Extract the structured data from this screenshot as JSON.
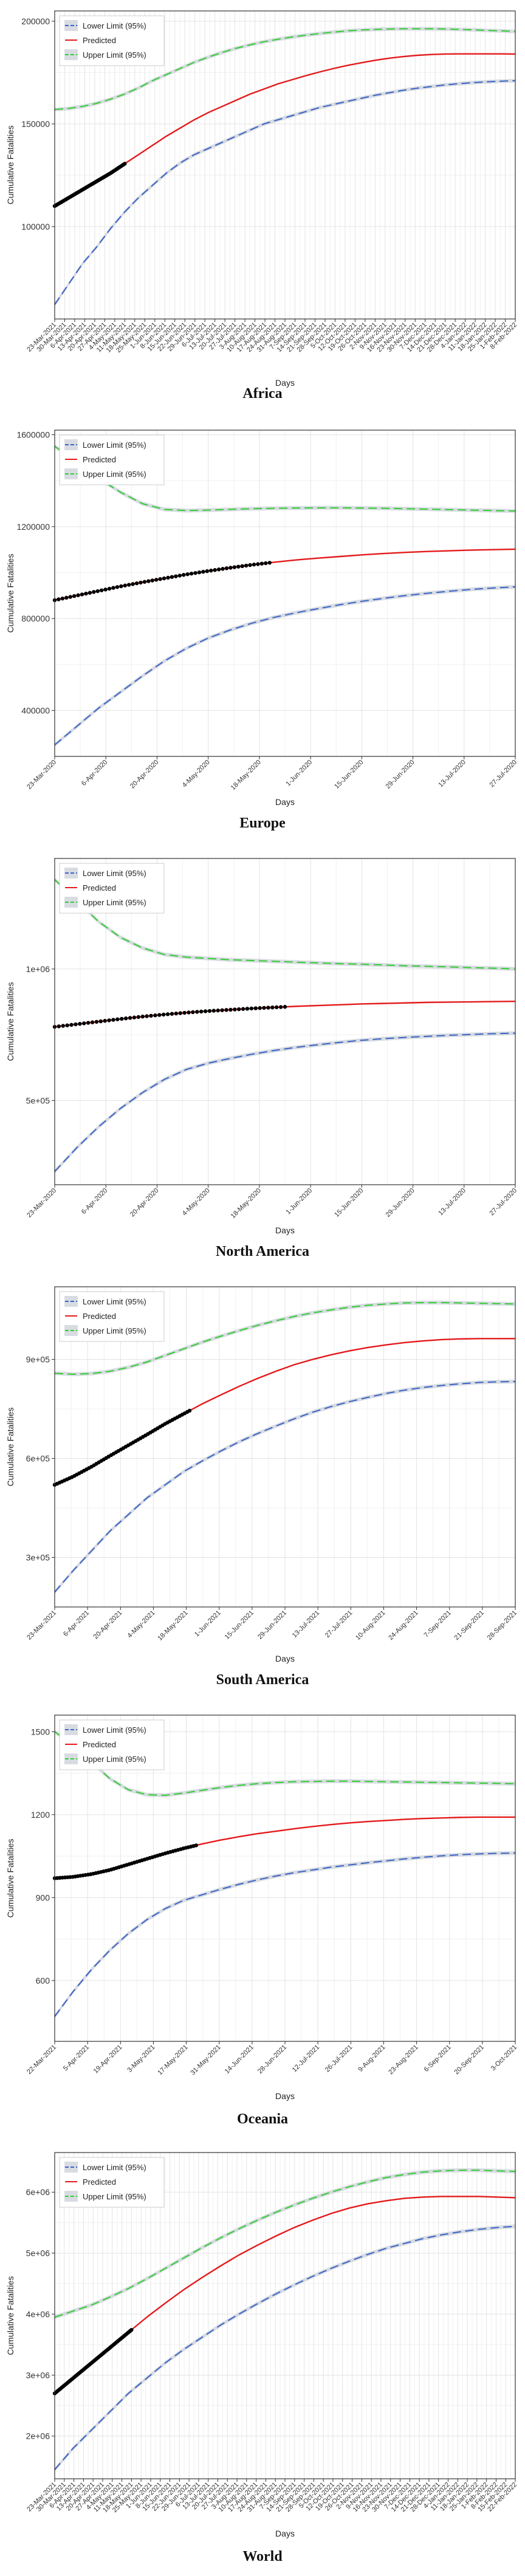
{
  "legend": {
    "lower": "Lower Limit (95%)",
    "predicted": "Predicted",
    "upper": "Upper Limit (95%)"
  },
  "axis": {
    "xlabel": "Days",
    "ylabel": "Cumulative Fatalities"
  },
  "colors": {
    "lower": "#3b63c4",
    "predicted": "#e41a1c",
    "upper": "#33cc33",
    "observed": "#000000",
    "band": "#c8cdd6"
  },
  "chart_data": [
    {
      "type": "line",
      "caption": "Africa",
      "xlabel": "Days",
      "ylabel": "Cumulative Fatalities",
      "legend_position": "top-left",
      "grid": true,
      "ylim": [
        55000,
        205000
      ],
      "y_ticks": [
        100000,
        150000,
        200000
      ],
      "y_tick_labels": [
        "100000",
        "150000",
        "200000"
      ],
      "x_ticks": [
        "23-Mar-2021",
        "30-Mar-2021",
        "6-Apr-2021",
        "13-Apr-2021",
        "20-Apr-2021",
        "27-Apr-2021",
        "4-May-2021",
        "11-May-2021",
        "18-May-2021",
        "25-May-2021",
        "1-Jun-2021",
        "8-Jun-2021",
        "15-Jun-2021",
        "22-Jun-2021",
        "29-Jun-2021",
        "6-Jul-2021",
        "13-Jul-2021",
        "20-Jul-2021",
        "27-Jul-2021",
        "3-Aug-2021",
        "10-Aug-2021",
        "17-Aug-2021",
        "24-Aug-2021",
        "31-Aug-2021",
        "7-Sep-2021",
        "14-Sep-2021",
        "21-Sep-2021",
        "28-Sep-2021",
        "5-Oct-2021",
        "12-Oct-2021",
        "19-Oct-2021",
        "26-Oct-2021",
        "2-Nov-2021",
        "9-Nov-2021",
        "16-Nov-2021",
        "23-Nov-2021",
        "30-Nov-2021",
        "7-Dec-2021",
        "14-Dec-2021",
        "21-Dec-2021",
        "28-Dec-2021",
        "4-Jan-2022",
        "11-Jan-2022",
        "18-Jan-2022",
        "25-Jan-2022",
        "1-Feb-2022",
        "8-Feb-2022"
      ],
      "observed_until_tick": 7,
      "series": [
        {
          "key": "lower",
          "name": "Lower Limit (95%)",
          "values": [
            62000,
            72000,
            82000,
            90000,
            99000,
            107000,
            114000,
            120000,
            126000,
            131000,
            135000,
            138000,
            141000,
            144000,
            147000,
            150000,
            152000,
            154000,
            156000,
            158000,
            159500,
            161000,
            162500,
            164000,
            165200,
            166400,
            167400,
            168200,
            169000,
            169600,
            170100,
            170500,
            170800,
            171000
          ]
        },
        {
          "key": "predicted",
          "name": "Predicted",
          "values": [
            110000,
            114000,
            118000,
            122000,
            126000,
            130500,
            135000,
            139500,
            144000,
            148000,
            152000,
            155500,
            158500,
            161500,
            164500,
            167000,
            169500,
            171500,
            173500,
            175300,
            177000,
            178500,
            179800,
            181000,
            182000,
            182800,
            183400,
            183800,
            184000,
            184100,
            184100,
            184100,
            184100,
            184000
          ]
        },
        {
          "key": "upper",
          "name": "Upper Limit (95%)",
          "values": [
            157000,
            157500,
            158500,
            160000,
            162000,
            164500,
            167500,
            171000,
            174000,
            177000,
            180000,
            182500,
            184800,
            186800,
            188500,
            190000,
            191200,
            192300,
            193200,
            194000,
            194700,
            195300,
            195700,
            196000,
            196200,
            196300,
            196300,
            196300,
            196200,
            196000,
            195800,
            195500,
            195300,
            195000
          ]
        }
      ]
    },
    {
      "type": "line",
      "caption": "Europe",
      "xlabel": "Days",
      "ylabel": "Cumulative Fatalities",
      "legend_position": "top-left",
      "grid": true,
      "ylim": [
        200000,
        1620000
      ],
      "y_ticks": [
        400000,
        800000,
        1200000,
        1600000
      ],
      "y_tick_labels": [
        "400000",
        "800000",
        "1200000",
        "1600000"
      ],
      "x_ticks": [
        "23-Mar-2020",
        "6-Apr-2020",
        "20-Apr-2020",
        "4-May-2020",
        "18-May-2020",
        "1-Jun-2020",
        "15-Jun-2020",
        "29-Jun-2020",
        "13-Jul-2020",
        "27-Jul-2020"
      ],
      "observed_until_tick": 4.2,
      "series": [
        {
          "key": "lower",
          "name": "Lower Limit (95%)",
          "values": [
            250000,
            330000,
            410000,
            480000,
            550000,
            615000,
            670000,
            715000,
            750000,
            780000,
            805000,
            825000,
            843000,
            860000,
            875000,
            888000,
            900000,
            910000,
            919000,
            927000,
            933000,
            938000
          ]
        },
        {
          "key": "predicted",
          "name": "Predicted",
          "values": [
            880000,
            900000,
            920000,
            940000,
            958000,
            975000,
            992000,
            1007000,
            1021000,
            1034000,
            1045000,
            1055000,
            1063000,
            1070000,
            1077000,
            1083000,
            1088000,
            1092000,
            1095000,
            1098000,
            1100000,
            1102000
          ]
        },
        {
          "key": "upper",
          "name": "Upper Limit (95%)",
          "values": [
            1550000,
            1480000,
            1410000,
            1350000,
            1300000,
            1275000,
            1270000,
            1272000,
            1275000,
            1278000,
            1280000,
            1281000,
            1282000,
            1282000,
            1281000,
            1280000,
            1278000,
            1276000,
            1274000,
            1272000,
            1270000,
            1268000
          ]
        }
      ]
    },
    {
      "type": "line",
      "caption": "North America",
      "xlabel": "Days",
      "ylabel": "Cumulative Fatalities",
      "legend_position": "top-left",
      "grid": true,
      "ylim": [
        180000,
        1420000
      ],
      "y_ticks": [
        500000,
        1000000
      ],
      "y_tick_labels": [
        "5e+05",
        "1e+06"
      ],
      "x_ticks": [
        "23-Mar-2020",
        "6-Apr-2020",
        "20-Apr-2020",
        "4-May-2020",
        "18-May-2020",
        "1-Jun-2020",
        "15-Jun-2020",
        "29-Jun-2020",
        "13-Jul-2020",
        "27-Jul-2020"
      ],
      "observed_until_tick": 4.5,
      "series": [
        {
          "key": "lower",
          "name": "Lower Limit (95%)",
          "values": [
            230000,
            320000,
            400000,
            470000,
            530000,
            580000,
            618000,
            642000,
            660000,
            676000,
            690000,
            702000,
            712000,
            721000,
            729000,
            735000,
            740000,
            744000,
            748000,
            751000,
            754000,
            756000
          ]
        },
        {
          "key": "predicted",
          "name": "Predicted",
          "values": [
            780000,
            790000,
            800000,
            810000,
            819000,
            827000,
            834000,
            840000,
            845000,
            850000,
            854000,
            858000,
            861000,
            864000,
            867000,
            869000,
            871000,
            873000,
            874000,
            875000,
            876000,
            877000
          ]
        },
        {
          "key": "upper",
          "name": "Upper Limit (95%)",
          "values": [
            1340000,
            1260000,
            1180000,
            1120000,
            1080000,
            1055000,
            1045000,
            1040000,
            1035000,
            1032000,
            1029000,
            1026000,
            1023000,
            1020000,
            1018000,
            1015000,
            1012000,
            1010000,
            1008000,
            1005000,
            1003000,
            1000000
          ]
        }
      ]
    },
    {
      "type": "line",
      "caption": "South America",
      "xlabel": "Days",
      "ylabel": "Cumulative Fatalities",
      "legend_position": "top-left",
      "grid": true,
      "ylim": [
        150000,
        1120000
      ],
      "y_ticks": [
        300000,
        600000,
        900000
      ],
      "y_tick_labels": [
        "3e+05",
        "6e+05",
        "9e+05"
      ],
      "x_ticks": [
        "23-Mar-2021",
        "6-Apr-2021",
        "20-Apr-2021",
        "4-May-2021",
        "18-May-2021",
        "1-Jun-2021",
        "15-Jun-2021",
        "29-Jun-2021",
        "13-Jul-2021",
        "27-Jul-2021",
        "10-Aug-2021",
        "24-Aug-2021",
        "7-Sep-2021",
        "21-Sep-2021",
        "28-Sep-2021"
      ],
      "observed_until_tick": 4.1,
      "series": [
        {
          "key": "lower",
          "name": "Lower Limit (95%)",
          "values": [
            195000,
            260000,
            320000,
            380000,
            430000,
            480000,
            520000,
            560000,
            592000,
            622000,
            650000,
            675000,
            698000,
            720000,
            740000,
            757000,
            772000,
            785000,
            797000,
            807000,
            815000,
            821000,
            826000,
            830000,
            832000,
            833000
          ]
        },
        {
          "key": "predicted",
          "name": "Predicted",
          "values": [
            520000,
            545000,
            575000,
            608000,
            640000,
            672000,
            705000,
            735000,
            765000,
            792000,
            818000,
            842000,
            864000,
            884000,
            900000,
            914000,
            926000,
            936000,
            944000,
            951000,
            956000,
            960000,
            962000,
            963000,
            963000,
            963000
          ]
        },
        {
          "key": "upper",
          "name": "Upper Limit (95%)",
          "values": [
            858000,
            855000,
            857000,
            864000,
            876000,
            892000,
            912000,
            932000,
            952000,
            970000,
            987000,
            1003000,
            1017000,
            1030000,
            1041000,
            1050000,
            1058000,
            1064000,
            1068000,
            1071000,
            1072000,
            1072000,
            1071000,
            1070000,
            1069000,
            1068000
          ]
        }
      ]
    },
    {
      "type": "line",
      "caption": "Oceania",
      "xlabel": "Days",
      "ylabel": "Cumulative Fatalities",
      "legend_position": "top-left",
      "grid": true,
      "ylim": [
        380000,
        1560000
      ],
      "y_ticks": [
        600,
        900,
        1200,
        1500
      ],
      "y_tick_labels": [
        "600",
        "900",
        "1200",
        "1500"
      ],
      "y_tick_scale": 1000,
      "x_ticks": [
        "22-Mar-2021",
        "5-Apr-2021",
        "19-Apr-2021",
        "3-May-2021",
        "17-May-2021",
        "31-May-2021",
        "14-Jun-2021",
        "28-Jun-2021",
        "12-Jul-2021",
        "26-Jul-2021",
        "9-Aug-2021",
        "23-Aug-2021",
        "6-Sep-2021",
        "20-Sep-2021",
        "3-Oct-2021"
      ],
      "observed_until_tick": 4.3,
      "series": [
        {
          "key": "lower",
          "name": "Lower Limit (95%)",
          "values": [
            470000,
            560000,
            640000,
            710000,
            770000,
            820000,
            860000,
            890000,
            910000,
            930000,
            948000,
            964000,
            978000,
            990000,
            1000000,
            1010000,
            1018000,
            1026000,
            1033000,
            1040000,
            1046000,
            1051000,
            1055000,
            1058000,
            1060000,
            1061000
          ]
        },
        {
          "key": "predicted",
          "name": "Predicted",
          "values": [
            970000,
            975000,
            985000,
            1000000,
            1020000,
            1040000,
            1060000,
            1078000,
            1094000,
            1108000,
            1120000,
            1131000,
            1140000,
            1149000,
            1157000,
            1164000,
            1170000,
            1175000,
            1179000,
            1183000,
            1186000,
            1188000,
            1190000,
            1191000,
            1191000,
            1191000
          ]
        },
        {
          "key": "upper",
          "name": "Upper Limit (95%)",
          "values": [
            1500000,
            1450000,
            1390000,
            1330000,
            1290000,
            1272000,
            1270000,
            1278000,
            1288000,
            1298000,
            1306000,
            1312000,
            1316000,
            1319000,
            1320000,
            1321000,
            1321000,
            1320000,
            1319000,
            1318000,
            1317000,
            1316000,
            1315000,
            1314000,
            1313000,
            1312000
          ]
        }
      ]
    },
    {
      "type": "line",
      "caption": "World",
      "xlabel": "Days",
      "ylabel": "Cumulative Fatalities",
      "legend_position": "top-left",
      "grid": true,
      "ylim": [
        1300000,
        6650000
      ],
      "y_ticks": [
        2000000,
        3000000,
        4000000,
        5000000,
        6000000
      ],
      "y_tick_labels": [
        "2e+06",
        "3e+06",
        "4e+06",
        "5e+06",
        "6e+06"
      ],
      "x_ticks": [
        "23-Mar-2021",
        "30-Mar-2021",
        "6-Apr-2021",
        "13-Apr-2021",
        "20-Apr-2021",
        "27-Apr-2021",
        "4-May-2021",
        "11-May-2021",
        "18-May-2021",
        "25-May-2021",
        "1-Jun-2021",
        "8-Jun-2021",
        "15-Jun-2021",
        "22-Jun-2021",
        "29-Jun-2021",
        "6-Jul-2021",
        "13-Jul-2021",
        "20-Jul-2021",
        "27-Jul-2021",
        "3-Aug-2021",
        "10-Aug-2021",
        "17-Aug-2021",
        "24-Aug-2021",
        "31-Aug-2021",
        "7-Sep-2021",
        "14-Sep-2021",
        "21-Sep-2021",
        "28-Sep-2021",
        "5-Oct-2021",
        "12-Oct-2021",
        "19-Oct-2021",
        "26-Oct-2021",
        "2-Nov-2021",
        "9-Nov-2021",
        "16-Nov-2021",
        "23-Nov-2021",
        "30-Nov-2021",
        "7-Dec-2021",
        "14-Dec-2021",
        "21-Dec-2021",
        "28-Dec-2021",
        "4-Jan-2022",
        "11-Jan-2022",
        "18-Jan-2022",
        "25-Jan-2022",
        "1-Feb-2022",
        "8-Feb-2022",
        "15-Feb-2022",
        "22-Feb-2022"
      ],
      "observed_until_tick": 8,
      "series": [
        {
          "key": "lower",
          "name": "Lower Limit (95%)",
          "values": [
            1450000,
            1800000,
            2100000,
            2400000,
            2700000,
            2950000,
            3200000,
            3420000,
            3620000,
            3820000,
            4000000,
            4170000,
            4330000,
            4480000,
            4620000,
            4750000,
            4870000,
            4980000,
            5080000,
            5160000,
            5240000,
            5300000,
            5350000,
            5390000,
            5420000,
            5440000
          ]
        },
        {
          "key": "predicted",
          "name": "Predicted",
          "values": [
            2700000,
            2950000,
            3200000,
            3450000,
            3700000,
            3950000,
            4180000,
            4400000,
            4600000,
            4790000,
            4970000,
            5130000,
            5280000,
            5420000,
            5540000,
            5650000,
            5740000,
            5810000,
            5860000,
            5900000,
            5920000,
            5930000,
            5930000,
            5930000,
            5920000,
            5910000
          ]
        },
        {
          "key": "upper",
          "name": "Upper Limit (95%)",
          "values": [
            3950000,
            4050000,
            4150000,
            4280000,
            4420000,
            4580000,
            4750000,
            4920000,
            5090000,
            5250000,
            5400000,
            5540000,
            5670000,
            5790000,
            5900000,
            6000000,
            6090000,
            6170000,
            6240000,
            6290000,
            6330000,
            6350000,
            6360000,
            6360000,
            6350000,
            6340000
          ]
        }
      ]
    }
  ]
}
